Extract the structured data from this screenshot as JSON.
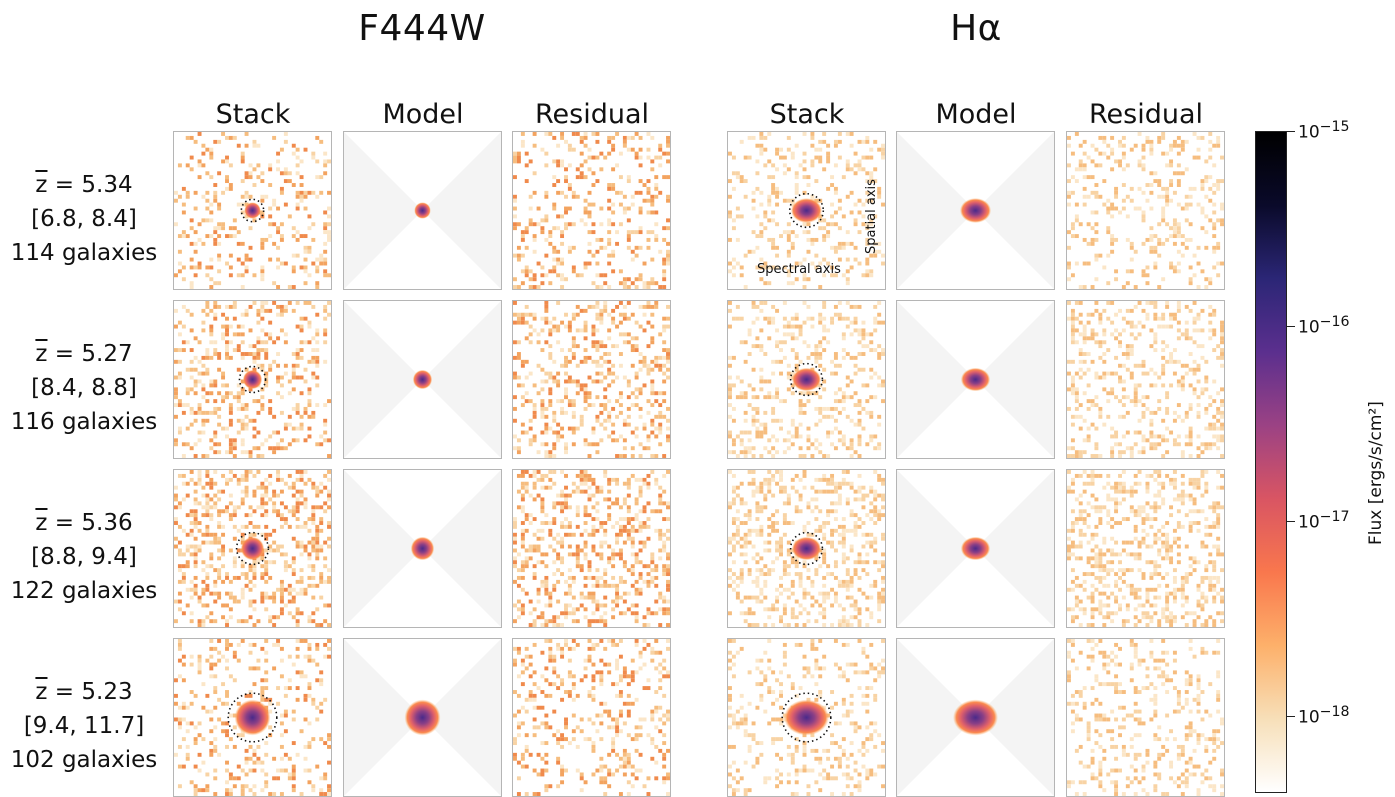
{
  "figure": {
    "groups": [
      {
        "key": "f444w",
        "title": "F444W"
      },
      {
        "key": "halpha",
        "title": "Hα"
      }
    ],
    "column_titles": [
      "Stack",
      "Model",
      "Residual"
    ],
    "rows": [
      {
        "zbar": "z",
        "z_value": "= 5.34",
        "range": "[6.8, 8.4]",
        "count": "114 galaxies",
        "f444w_size": 0.6,
        "halpha_size": 0.9
      },
      {
        "zbar": "z",
        "z_value": "= 5.27",
        "range": "[8.4, 8.8]",
        "count": "116 galaxies",
        "f444w_size": 0.7,
        "halpha_size": 0.85
      },
      {
        "zbar": "z",
        "z_value": "= 5.36",
        "range": "[8.8, 9.4]",
        "count": "122 galaxies",
        "f444w_size": 0.85,
        "halpha_size": 0.85
      },
      {
        "zbar": "z",
        "z_value": "= 5.23",
        "range": "[9.4, 11.7]",
        "count": "102 galaxies",
        "f444w_size": 1.3,
        "halpha_size": 1.3
      }
    ],
    "annotations": {
      "spatial_axis": "Spatial axis",
      "spectral_axis": "Spectral axis"
    },
    "colorbar": {
      "label": "Flux [ergs/s/cm²]",
      "scale": "log",
      "ticks": [
        {
          "base": "10",
          "exp": "−15"
        },
        {
          "base": "10",
          "exp": "−16"
        },
        {
          "base": "10",
          "exp": "−17"
        },
        {
          "base": "10",
          "exp": "−18"
        }
      ],
      "colormap": [
        "#ffffff",
        "#f7dfb8",
        "#fdb06a",
        "#f9774d",
        "#d95563",
        "#9b4284",
        "#5b2f8e",
        "#2b2676",
        "#0a0a2a",
        "#000000"
      ]
    }
  }
}
